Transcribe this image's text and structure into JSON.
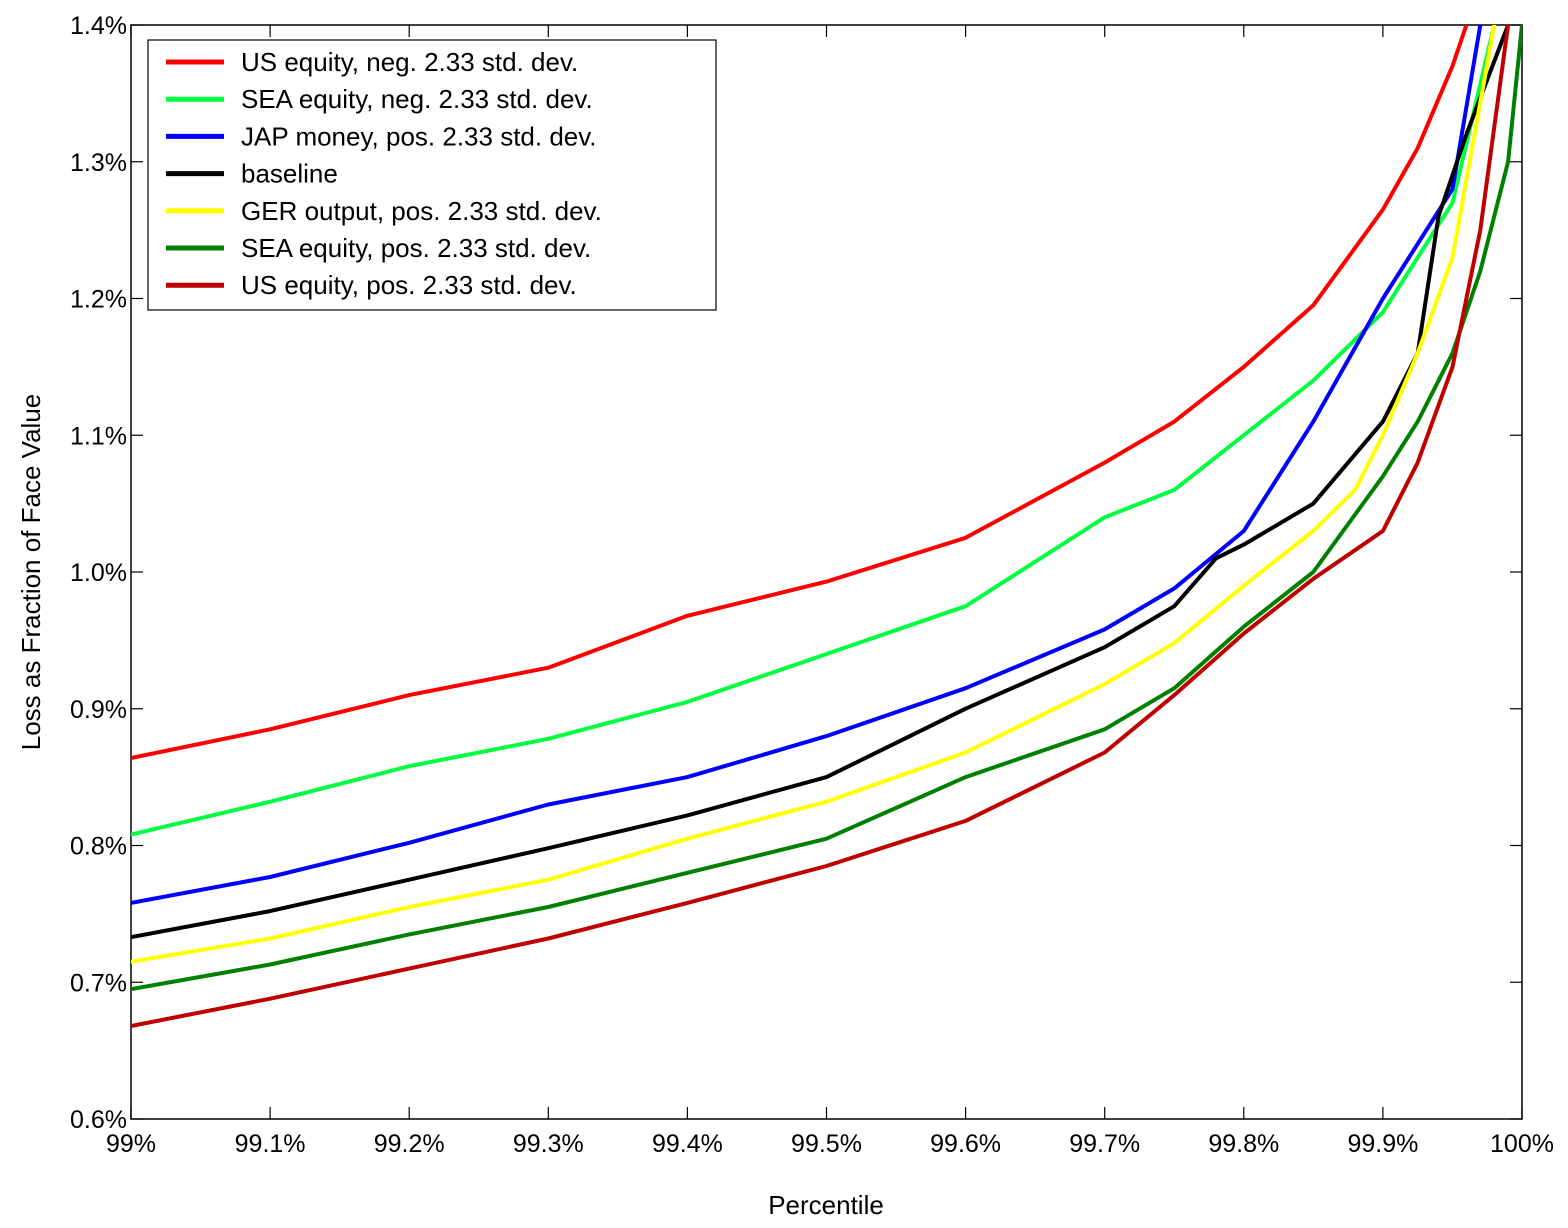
{
  "chart_data": {
    "type": "line",
    "title": "",
    "xlabel": "Percentile",
    "ylabel": "Loss as Fraction of Face Value",
    "xlim": [
      99.0,
      100.0
    ],
    "ylim": [
      0.6,
      1.4
    ],
    "grid": false,
    "legend_position": "top-left",
    "x_ticks": [
      99.0,
      99.1,
      99.2,
      99.3,
      99.4,
      99.5,
      99.6,
      99.7,
      99.8,
      99.9,
      100.0
    ],
    "x_tick_labels": [
      "99%",
      "99.1%",
      "99.2%",
      "99.3%",
      "99.4%",
      "99.5%",
      "99.6%",
      "99.7%",
      "99.8%",
      "99.9%",
      "100%"
    ],
    "y_ticks": [
      0.6,
      0.7,
      0.8,
      0.9,
      1.0,
      1.1,
      1.2,
      1.3,
      1.4
    ],
    "y_tick_labels": [
      "0.6%",
      "0.7%",
      "0.8%",
      "0.9%",
      "1.0%",
      "1.1%",
      "1.2%",
      "1.3%",
      "1.4%"
    ],
    "series": [
      {
        "name": "US equity, neg. 2.33 std. dev.",
        "color": "#ff0000",
        "x": [
          99.0,
          99.1,
          99.2,
          99.3,
          99.4,
          99.5,
          99.6,
          99.7,
          99.75,
          99.8,
          99.85,
          99.9,
          99.925,
          99.95,
          99.96
        ],
        "y": [
          0.864,
          0.885,
          0.91,
          0.93,
          0.968,
          0.993,
          1.025,
          1.08,
          1.11,
          1.15,
          1.195,
          1.265,
          1.31,
          1.37,
          1.4
        ]
      },
      {
        "name": "SEA equity, neg. 2.33 std. dev.",
        "color": "#00ff40",
        "x": [
          99.0,
          99.1,
          99.2,
          99.3,
          99.4,
          99.5,
          99.6,
          99.7,
          99.75,
          99.8,
          99.85,
          99.9,
          99.95,
          99.98
        ],
        "y": [
          0.808,
          0.832,
          0.858,
          0.878,
          0.905,
          0.94,
          0.975,
          1.04,
          1.06,
          1.1,
          1.14,
          1.19,
          1.27,
          1.4
        ]
      },
      {
        "name": "JAP money, pos. 2.33 std. dev.",
        "color": "#0000ff",
        "x": [
          99.0,
          99.1,
          99.2,
          99.3,
          99.4,
          99.5,
          99.6,
          99.7,
          99.75,
          99.8,
          99.85,
          99.9,
          99.95,
          99.97
        ],
        "y": [
          0.758,
          0.777,
          0.802,
          0.83,
          0.85,
          0.88,
          0.915,
          0.958,
          0.988,
          1.03,
          1.11,
          1.2,
          1.28,
          1.4
        ]
      },
      {
        "name": "baseline",
        "color": "#000000",
        "x": [
          99.0,
          99.1,
          99.2,
          99.3,
          99.4,
          99.5,
          99.6,
          99.7,
          99.75,
          99.78,
          99.8,
          99.85,
          99.9,
          99.925,
          99.94,
          99.96,
          99.99
        ],
        "y": [
          0.733,
          0.752,
          0.775,
          0.798,
          0.822,
          0.85,
          0.9,
          0.945,
          0.975,
          1.01,
          1.02,
          1.05,
          1.11,
          1.16,
          1.26,
          1.32,
          1.4
        ]
      },
      {
        "name": "GER output, pos. 2.33 std. dev.",
        "color": "#ffff00",
        "x": [
          99.0,
          99.1,
          99.2,
          99.3,
          99.4,
          99.5,
          99.6,
          99.7,
          99.75,
          99.8,
          99.85,
          99.88,
          99.9,
          99.925,
          99.95,
          99.98
        ],
        "y": [
          0.715,
          0.732,
          0.755,
          0.775,
          0.805,
          0.832,
          0.868,
          0.918,
          0.948,
          0.99,
          1.03,
          1.06,
          1.1,
          1.16,
          1.23,
          1.4
        ]
      },
      {
        "name": "SEA equity, pos. 2.33 std. dev.",
        "color": "#008000",
        "x": [
          99.0,
          99.1,
          99.2,
          99.3,
          99.4,
          99.5,
          99.6,
          99.7,
          99.75,
          99.8,
          99.85,
          99.9,
          99.925,
          99.95,
          99.97,
          99.99,
          100.0
        ],
        "y": [
          0.695,
          0.713,
          0.735,
          0.755,
          0.78,
          0.805,
          0.85,
          0.885,
          0.915,
          0.96,
          1.0,
          1.07,
          1.11,
          1.16,
          1.22,
          1.3,
          1.4
        ]
      },
      {
        "name": "US equity, pos. 2.33 std. dev.",
        "color": "#c00000",
        "x": [
          99.0,
          99.1,
          99.2,
          99.3,
          99.4,
          99.5,
          99.6,
          99.7,
          99.75,
          99.8,
          99.85,
          99.9,
          99.925,
          99.95,
          99.97,
          99.99
        ],
        "y": [
          0.668,
          0.688,
          0.71,
          0.732,
          0.758,
          0.785,
          0.818,
          0.868,
          0.91,
          0.955,
          0.995,
          1.03,
          1.08,
          1.15,
          1.25,
          1.4
        ]
      }
    ]
  }
}
